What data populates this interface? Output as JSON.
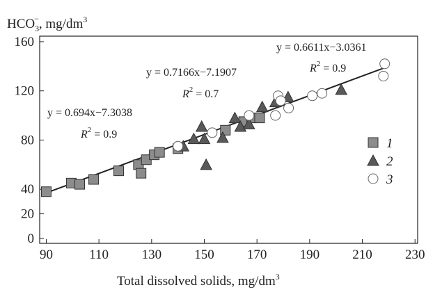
{
  "chart_data": {
    "type": "scatter",
    "y_label": [
      "HCO",
      "3",
      "−",
      ", mg/dm",
      "3"
    ],
    "x_label": [
      "Total dissolved solids, mg/dm",
      "3"
    ],
    "xlim": [
      87.5,
      231
    ],
    "xticks": [
      90,
      110,
      130,
      150,
      170,
      190,
      210,
      230
    ],
    "ylim": [
      -4,
      164.5
    ],
    "yticks": [
      0,
      20,
      40,
      80,
      120,
      160
    ],
    "legend": "right",
    "series": [
      {
        "name": "1",
        "marker": "square",
        "color": "#8c8c8c",
        "x": [
          90,
          99.5,
          102.7,
          108,
          117.5,
          125,
          126,
          128,
          131,
          133,
          140,
          158,
          165,
          168,
          171
        ],
        "y": [
          38,
          45,
          44,
          48,
          55,
          60,
          53,
          64,
          68,
          70,
          73,
          88,
          95,
          98,
          98
        ]
      },
      {
        "name": "2",
        "marker": "triangle",
        "color": "#595959",
        "x": [
          142,
          146,
          149,
          150,
          150.7,
          157,
          161.6,
          163.7,
          167,
          172,
          177,
          181.8,
          202
        ],
        "y": [
          75,
          81,
          91,
          81,
          60,
          82,
          98,
          91,
          93,
          107,
          111,
          115,
          121
        ]
      },
      {
        "name": "3",
        "marker": "circle",
        "color": "#ffffff",
        "x": [
          140,
          153,
          167,
          177,
          178,
          179,
          182,
          191,
          194.7,
          218,
          218.5
        ],
        "y": [
          75,
          86,
          100,
          100,
          116,
          112,
          106,
          116,
          118,
          132,
          142
        ]
      }
    ],
    "fit_line": {
      "x": [
        90,
        220
      ],
      "y": [
        37,
        140
      ]
    },
    "annotations": [
      {
        "equation": "y =  0.694x−7.3038",
        "r_label": [
          "R",
          "2",
          " = 0.9"
        ]
      },
      {
        "equation": "y =  0.7166x−7.1907",
        "r_label": [
          "R",
          "2",
          " = 0.7"
        ]
      },
      {
        "equation": "y =  0.6611x−3.0361",
        "r_label": [
          "R",
          "2",
          " = 0.9"
        ]
      }
    ]
  }
}
